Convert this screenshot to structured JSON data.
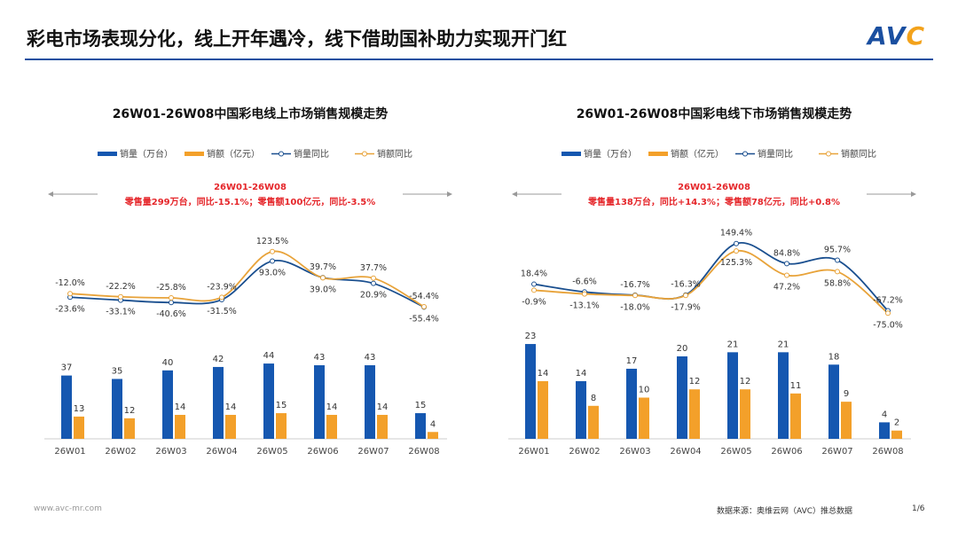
{
  "title": "彩电市场表现分化，线上开年遇冷，线下借助国补助力实现开门红",
  "logo": "AVC",
  "footer": {
    "url": "www.avc-mr.com",
    "source": "数据来源：奥维云网（AVC）推总数据",
    "page": "1/6"
  },
  "colors": {
    "volume": "#1557b0",
    "sales": "#f3a02a",
    "vol_line": "#1a4f8f",
    "sales_line": "#e8a33a",
    "note": "#e5262a"
  },
  "chart_data": [
    {
      "type": "bar+line",
      "title": "26W01-26W08中国彩电线上市场销售规模走势",
      "legend": [
        "销量（万台）",
        "销额（亿元）",
        "销量同比",
        "销额同比"
      ],
      "note_title": "26W01-26W08",
      "note": "零售量299万台，同比-15.1%；零售额100亿元，同比-3.5%",
      "categories": [
        "26W01",
        "26W02",
        "26W03",
        "26W04",
        "26W05",
        "26W06",
        "26W07",
        "26W08"
      ],
      "volume": [
        37,
        35,
        40,
        42,
        44,
        43,
        43,
        15
      ],
      "sales": [
        13,
        12,
        14,
        14,
        15,
        14,
        14,
        4
      ],
      "volume_yoy": [
        -23.6,
        -33.1,
        -40.6,
        -31.5,
        93.0,
        39.7,
        20.9,
        -55.4
      ],
      "sales_yoy": [
        -12.0,
        -22.2,
        -25.8,
        -23.9,
        123.5,
        39.0,
        37.7,
        -54.4
      ]
    },
    {
      "type": "bar+line",
      "title": "26W01-26W08中国彩电线下市场销售规模走势",
      "legend": [
        "销量（万台）",
        "销额（亿元）",
        "销量同比",
        "销额同比"
      ],
      "note_title": "26W01-26W08",
      "note": "零售量138万台，同比+14.3%；零售额78亿元，同比+0.8%",
      "categories": [
        "26W01",
        "26W02",
        "26W03",
        "26W04",
        "26W05",
        "26W06",
        "26W07",
        "26W08"
      ],
      "volume": [
        23,
        14,
        17,
        20,
        21,
        21,
        18,
        4
      ],
      "sales": [
        14,
        8,
        10,
        12,
        12,
        11,
        9,
        2
      ],
      "volume_yoy": [
        18.4,
        -6.6,
        -16.7,
        -16.3,
        149.4,
        84.8,
        95.7,
        -67.2
      ],
      "sales_yoy": [
        -0.9,
        -13.1,
        -18.0,
        -17.9,
        125.3,
        47.2,
        58.8,
        -75.0
      ]
    }
  ]
}
